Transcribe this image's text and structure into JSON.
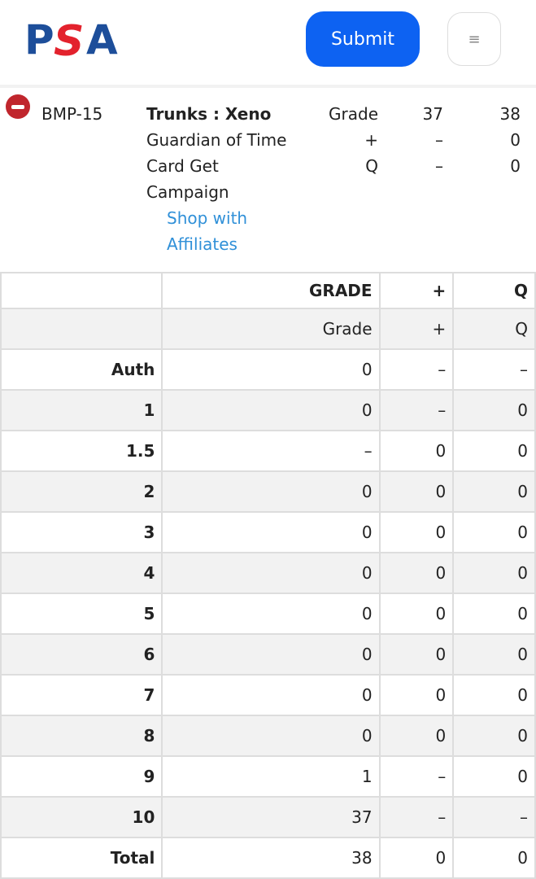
{
  "header": {
    "logo": "PSA",
    "submit_label": "Submit",
    "menu_icon": "≡",
    "colors": {
      "submit": "#0d62f2",
      "logo_blue": "#1d4e9a",
      "logo_red": "#e3222d"
    }
  },
  "card": {
    "number": "BMP-15",
    "name": "Trunks : Xeno",
    "lines": [
      "Guardian of Time",
      "Card Get",
      "Campaign"
    ],
    "link_line1": "Shop with",
    "link_line2": "Affiliates",
    "summary": [
      [
        "Grade",
        "37",
        "38"
      ],
      [
        "+",
        "–",
        "0"
      ],
      [
        "Q",
        "–",
        "0"
      ]
    ]
  },
  "table": {
    "header": [
      "",
      "GRADE",
      "+",
      "Q"
    ],
    "subheader": [
      "",
      "Grade",
      "+",
      "Q"
    ],
    "rows": [
      [
        "Auth",
        "0",
        "–",
        "–"
      ],
      [
        "1",
        "0",
        "–",
        "0"
      ],
      [
        "1.5",
        "–",
        "0",
        "0"
      ],
      [
        "2",
        "0",
        "0",
        "0"
      ],
      [
        "3",
        "0",
        "0",
        "0"
      ],
      [
        "4",
        "0",
        "0",
        "0"
      ],
      [
        "5",
        "0",
        "0",
        "0"
      ],
      [
        "6",
        "0",
        "0",
        "0"
      ],
      [
        "7",
        "0",
        "0",
        "0"
      ],
      [
        "8",
        "0",
        "0",
        "0"
      ],
      [
        "9",
        "1",
        "–",
        "0"
      ],
      [
        "10",
        "37",
        "–",
        "–"
      ],
      [
        "Total",
        "38",
        "0",
        "0"
      ]
    ]
  }
}
